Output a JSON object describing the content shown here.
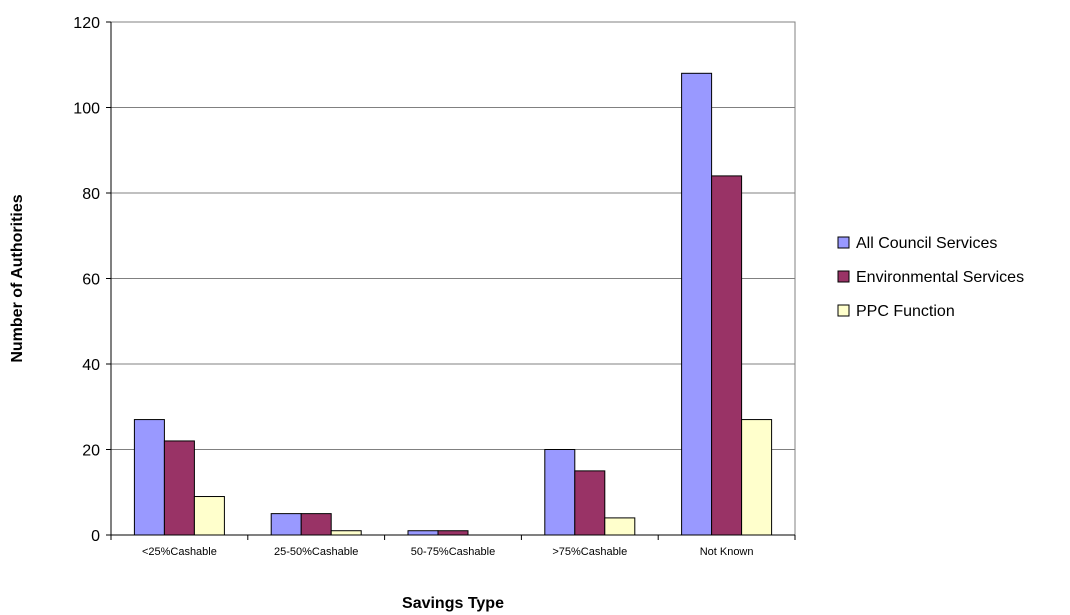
{
  "chart_data": {
    "type": "bar",
    "title": "",
    "xlabel": "Savings Type",
    "ylabel": "Number of Authorities",
    "ylim": [
      0,
      120
    ],
    "yticks": [
      0,
      20,
      40,
      60,
      80,
      100,
      120
    ],
    "grid": true,
    "legend_position": "right",
    "categories": [
      "<25%Cashable",
      "25-50%Cashable",
      "50-75%Cashable",
      ">75%Cashable",
      "Not Known"
    ],
    "series": [
      {
        "name": "All Council Services",
        "color": "#9999ff",
        "values": [
          27,
          5,
          1,
          20,
          108
        ]
      },
      {
        "name": "Environmental Services",
        "color": "#993366",
        "values": [
          22,
          5,
          1,
          15,
          84
        ]
      },
      {
        "name": "PPC Function",
        "color": "#ffffcc",
        "values": [
          9,
          1,
          0,
          4,
          27
        ]
      }
    ]
  }
}
